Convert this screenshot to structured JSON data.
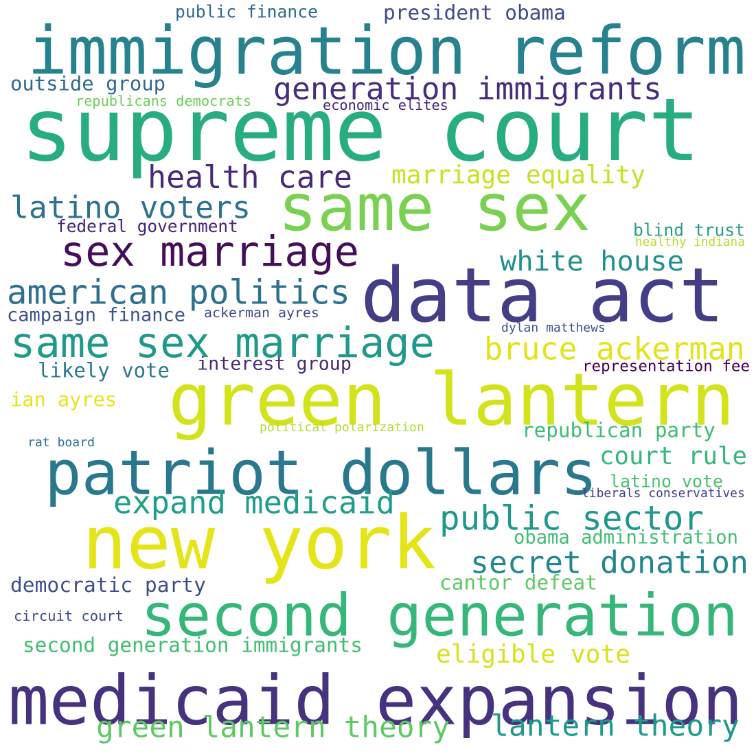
{
  "words": [
    {
      "text": "immigration reform",
      "color": "#26828e"
    },
    {
      "text": "supreme court",
      "color": "#27ad81"
    },
    {
      "text": "same sex",
      "color": "#7ad151"
    },
    {
      "text": "data act",
      "color": "#433e85"
    },
    {
      "text": "green lantern",
      "color": "#d2e21b"
    },
    {
      "text": "patriot dollars",
      "color": "#2a788e"
    },
    {
      "text": "new york",
      "color": "#e4e419"
    },
    {
      "text": "second generation",
      "color": "#35b779"
    },
    {
      "text": "medicaid expansion",
      "color": "#46327e"
    },
    {
      "text": "public finance",
      "color": "#31688e"
    },
    {
      "text": "president obama",
      "color": "#3e4a89"
    },
    {
      "text": "outside group",
      "color": "#31688e"
    },
    {
      "text": "generation immigrants",
      "color": "#472d7b"
    },
    {
      "text": "republicans democrats",
      "color": "#6ccd5a"
    },
    {
      "text": "economic elites",
      "color": "#482475"
    },
    {
      "text": "health care",
      "color": "#482878"
    },
    {
      "text": "marriage equality",
      "color": "#c8e020"
    },
    {
      "text": "latino voters",
      "color": "#2c728e"
    },
    {
      "text": "federal government",
      "color": "#482475"
    },
    {
      "text": "sex marriage",
      "color": "#440f57"
    },
    {
      "text": "blind trust",
      "color": "#2a9d8a"
    },
    {
      "text": "healthy indiana",
      "color": "#b5de2b"
    },
    {
      "text": "white house",
      "color": "#21908d"
    },
    {
      "text": "american politics",
      "color": "#2d708e"
    },
    {
      "text": "campaign finance",
      "color": "#3b528b"
    },
    {
      "text": "ackerman ayres",
      "color": "#3e4a89"
    },
    {
      "text": "dylan matthews",
      "color": "#3b528b"
    },
    {
      "text": "same sex marriage",
      "color": "#1f9a8a"
    },
    {
      "text": "bruce ackerman",
      "color": "#e1e41d"
    },
    {
      "text": "interest group",
      "color": "#482878"
    },
    {
      "text": "representation fee",
      "color": "#440154"
    },
    {
      "text": "likely vote",
      "color": "#2a788e"
    },
    {
      "text": "ian ayres",
      "color": "#e7e31b"
    },
    {
      "text": "political polarization",
      "color": "#b2dd2d"
    },
    {
      "text": "republican party",
      "color": "#3cbc75"
    },
    {
      "text": "rat board",
      "color": "#2e6e8e"
    },
    {
      "text": "court rule",
      "color": "#35b779"
    },
    {
      "text": "latino vote",
      "color": "#4ac16d"
    },
    {
      "text": "liberals conservatives",
      "color": "#433e85"
    },
    {
      "text": "expand medicaid",
      "color": "#1f9e89"
    },
    {
      "text": "public sector",
      "color": "#1f988b"
    },
    {
      "text": "obama administration",
      "color": "#40bd72"
    },
    {
      "text": "secret donation",
      "color": "#24868e"
    },
    {
      "text": "democratic party",
      "color": "#3e4c8a"
    },
    {
      "text": "cantor defeat",
      "color": "#5ec962"
    },
    {
      "text": "circuit court",
      "color": "#3e4a89"
    },
    {
      "text": "second generation immigrants",
      "color": "#40bd72"
    },
    {
      "text": "eligible vote",
      "color": "#d8e219"
    },
    {
      "text": "green lantern theory",
      "color": "#5ec962"
    },
    {
      "text": "lantern theory",
      "color": "#1f9a8a"
    }
  ]
}
